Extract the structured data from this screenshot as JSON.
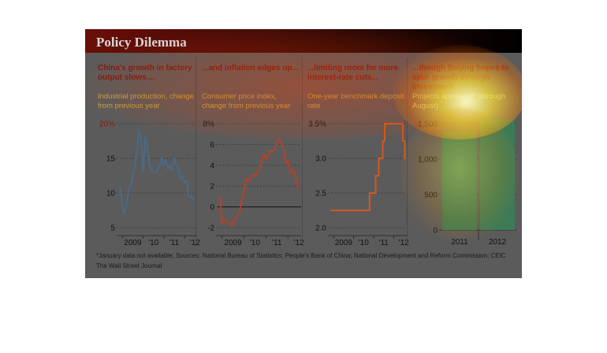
{
  "title": "Policy Dilemma",
  "footnote": "*January data not available; Sources: National Bureau of Statistics; People's Bank of China; National Development and Reform Commission; CEIC",
  "source": "The Wall Street Journal",
  "colors": {
    "industrial": "#4a6a86",
    "cpi": "#b5412a",
    "rate": "#d3581e",
    "investment": "#3d7a56"
  },
  "chart_data": [
    {
      "type": "line",
      "heading": "China's growth in factory output slows....",
      "subtitle": "Industrial production, change from previous year",
      "ylim": [
        5,
        20
      ],
      "yticks": [
        "20%",
        "15",
        "10",
        "5"
      ],
      "xticks": [
        "2009",
        "'10",
        "'11",
        "'12"
      ],
      "grid": true,
      "x": [
        2008.9,
        2009.0,
        2009.1,
        2009.2,
        2009.3,
        2009.4,
        2009.5,
        2009.6,
        2009.7,
        2009.8,
        2009.9,
        2010.0,
        2010.1,
        2010.2,
        2010.3,
        2010.4,
        2010.5,
        2010.6,
        2010.7,
        2010.8,
        2010.9,
        2011.0,
        2011.1,
        2011.2,
        2011.3,
        2011.4,
        2011.5,
        2011.6,
        2011.7,
        2011.8,
        2011.9,
        2012.0,
        2012.1,
        2012.2,
        2012.3,
        2012.4,
        2012.5
      ],
      "values": [
        11.0,
        8.0,
        7.0,
        8.5,
        10.5,
        11.0,
        12.5,
        14.0,
        16.0,
        19.0,
        18.0,
        13.0,
        18.0,
        17.0,
        14.0,
        13.5,
        13.0,
        13.0,
        13.3,
        13.9,
        15.1,
        14.0,
        14.8,
        13.4,
        14.0,
        13.3,
        15.0,
        14.0,
        13.5,
        12.0,
        12.5,
        11.5,
        11.8,
        9.5,
        9.5,
        9.2,
        8.9
      ]
    },
    {
      "type": "line",
      "heading": "...and inflation edges up...",
      "subtitle": "Consumer price index, change from previous year",
      "ylim": [
        -2,
        8
      ],
      "yticks": [
        "8%",
        "6",
        "4",
        "2",
        "0",
        "-2"
      ],
      "xticks": [
        "2009",
        "'10",
        "'11",
        "'12"
      ],
      "grid": true,
      "x": [
        2008.9,
        2009.0,
        2009.1,
        2009.2,
        2009.3,
        2009.4,
        2009.5,
        2009.6,
        2009.7,
        2009.8,
        2009.9,
        2010.0,
        2010.1,
        2010.2,
        2010.3,
        2010.4,
        2010.5,
        2010.6,
        2010.7,
        2010.8,
        2010.9,
        2011.0,
        2011.1,
        2011.2,
        2011.3,
        2011.4,
        2011.5,
        2011.6,
        2011.7,
        2011.8,
        2011.9,
        2012.0,
        2012.1,
        2012.2,
        2012.3,
        2012.4,
        2012.5
      ],
      "values": [
        1.0,
        -1.6,
        -1.2,
        -1.5,
        -1.4,
        -1.7,
        -1.8,
        -1.2,
        -0.8,
        -0.5,
        0.6,
        1.5,
        2.7,
        2.4,
        2.8,
        3.1,
        2.9,
        3.3,
        3.5,
        4.4,
        5.1,
        4.6,
        4.9,
        5.4,
        5.3,
        5.5,
        6.4,
        6.5,
        6.2,
        5.5,
        4.2,
        4.5,
        3.2,
        3.6,
        3.4,
        2.2,
        1.8
      ]
    },
    {
      "type": "line",
      "step": true,
      "heading": "...limiting room for more interest-rate cuts...",
      "subtitle": "One-year benchmark deposit rate",
      "ylim": [
        2.0,
        3.5
      ],
      "yticks": [
        "3.5%",
        "3.0",
        "2.5",
        "2.0"
      ],
      "xticks": [
        "2009",
        "'10",
        "'11",
        "'12"
      ],
      "grid": true,
      "x": [
        2008.85,
        2010.8,
        2011.1,
        2011.25,
        2011.45,
        2011.55,
        2012.45,
        2012.55,
        2012.6
      ],
      "values": [
        2.25,
        2.5,
        2.75,
        3.0,
        3.25,
        3.5,
        3.25,
        3.0,
        3.0
      ]
    },
    {
      "type": "bar",
      "heading": "...though Beijing hopes to spur growth through investment.",
      "subtitle": "Projects approved* (through August)",
      "ylim": [
        0,
        1500
      ],
      "yticks": [
        "1,500",
        "1,000",
        "500",
        "0"
      ],
      "categories": [
        "2011",
        "2012"
      ],
      "values": [
        1390,
        1560
      ],
      "grid": true
    }
  ]
}
